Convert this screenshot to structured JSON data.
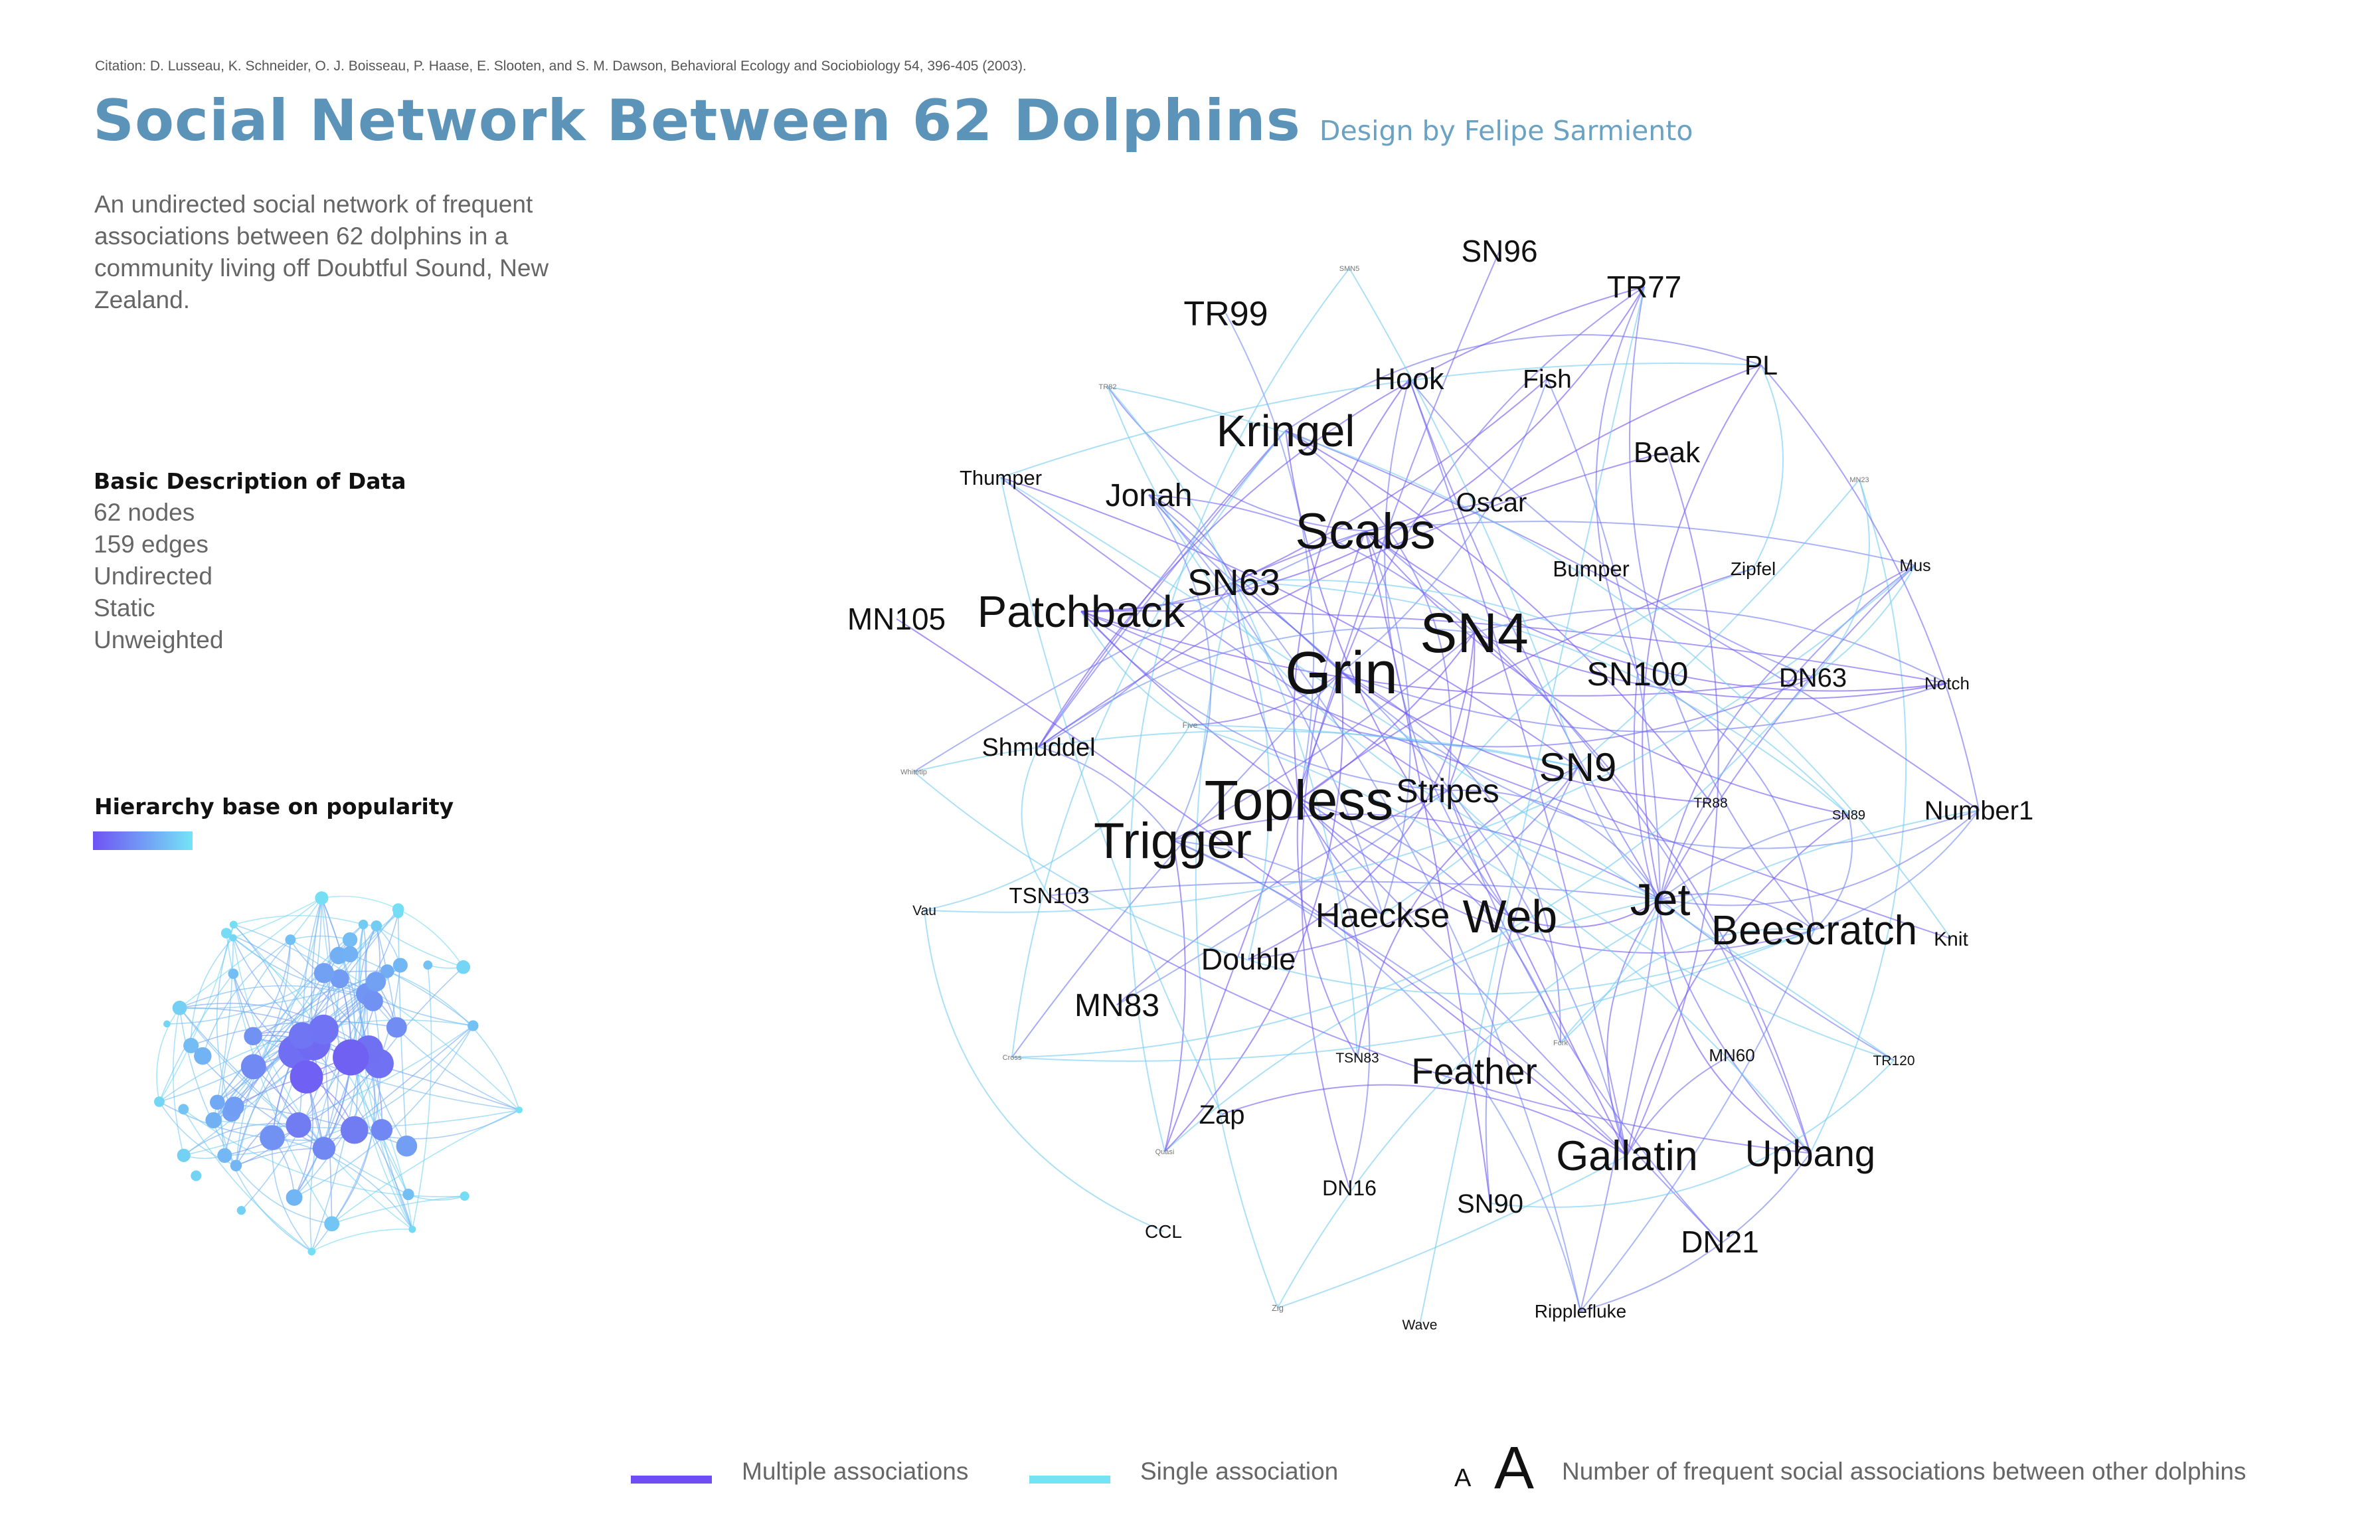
{
  "citation": "Citation: D. Lusseau, K. Schneider, O. J. Boisseau, P. Haase, E. Slooten, and S. M. Dawson, Behavioral Ecology and Sociobiology 54, 396-405 (2003).",
  "title": "Social Network Between 62 Dolphins",
  "subtitle": "Design by Felipe Sarmiento",
  "description": "An undirected social network of frequent associations between 62 dolphins in a community living off Doubtful Sound, New Zealand.",
  "basic": {
    "heading": "Basic Description of Data",
    "items": [
      "62 nodes",
      "159 edges",
      "Undirected",
      "Static",
      "Unweighted"
    ]
  },
  "hierarchy": {
    "heading": "Hierarchy base on popularity"
  },
  "colors": {
    "multiple": "#6f4cf3",
    "single": "#74e3f4",
    "title": "#5b94b8"
  },
  "legend": {
    "multiple": "Multiple associations",
    "single": "Single association",
    "size_small": "A",
    "size_big": "A",
    "size_text": "Number of frequent social associations between other dolphins"
  },
  "dolphins": [
    "SN96",
    "TR77",
    "TR99",
    "Hook",
    "Fish",
    "PL",
    "Kringel",
    "Beak",
    "Thumper",
    "Jonah",
    "Oscar",
    "Scabs",
    "Bumper",
    "Zipfel",
    "Mus",
    "SN63",
    "MN105",
    "Patchback",
    "SN4",
    "Grin",
    "SN100",
    "DN63",
    "Notch",
    "SN9",
    "Shmuddel",
    "Stripes",
    "Topless",
    "Number1",
    "Trigger",
    "TR88",
    "SN89",
    "TSN103",
    "Haeckse",
    "Web",
    "Jet",
    "Beescratch",
    "Knit",
    "Double",
    "Vau",
    "MN83",
    "TSN83",
    "Feather",
    "MN60",
    "TR120",
    "Zap",
    "Gallatin",
    "Upbang",
    "DN16",
    "SN90",
    "DN21",
    "CCL",
    "Ripplefluke",
    "Wave",
    "Zig",
    "Quasi",
    "Cross",
    "Whitetip",
    "Five",
    "SMN5",
    "TR82",
    "MN23",
    "Fork"
  ]
}
